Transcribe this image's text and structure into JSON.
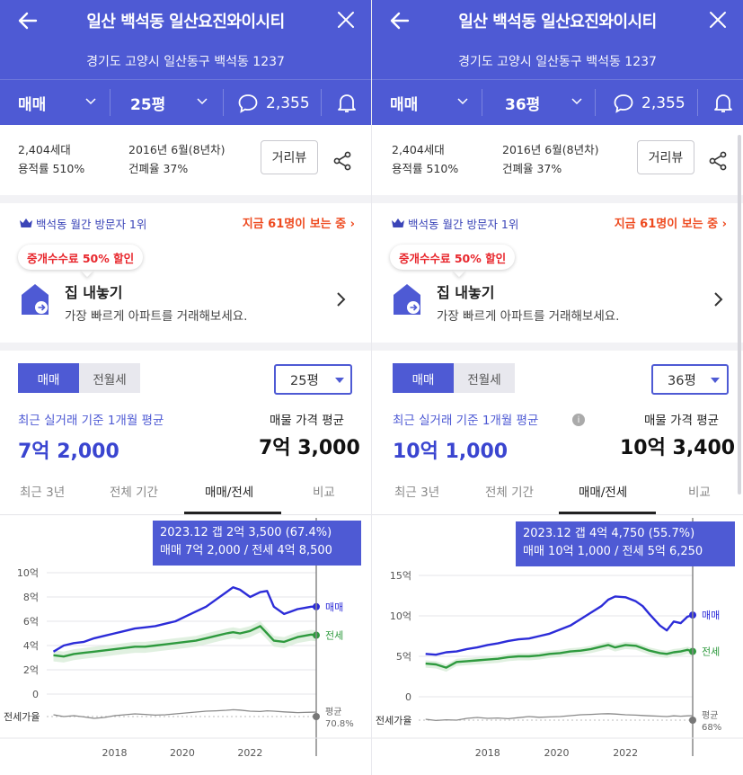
{
  "colors": {
    "header": "#4e5ad4",
    "sale": "#2c2cd8",
    "jeonse": "#2e9a3e",
    "ratio": "#8a8a8a",
    "accent_red": "#ee4a1f"
  },
  "panels": [
    {
      "header": {
        "title": "일산 백석동 일산요진와이시티",
        "address": "경기도 고양시 일산동구 백석동 1237",
        "trade_type": "매매",
        "size": "25평",
        "comments": "2,355"
      },
      "info": {
        "households": "2,404세대",
        "floor_area_ratio": "용적률 510%",
        "built": "2016년 6월(8년차)",
        "coverage_ratio": "건폐율 37%",
        "street_view": "거리뷰"
      },
      "visitors": {
        "text": "백석동 월간 방문자 1위",
        "now": "지금 61명이 보는 중"
      },
      "sell": {
        "badge": "중개수수료 50% 할인",
        "title": "집 내놓기",
        "subtitle": "가장 빠르게 아파트를 거래해보세요."
      },
      "price": {
        "seg_sale": "매매",
        "seg_rent": "전월세",
        "size": "25평",
        "avg_label": "최근 실거래 기준 1개월 평균",
        "avg_value": "7억 2,000",
        "listing_label": "매물 가격 평균",
        "listing_value": "7억 3,000"
      },
      "period_tabs": [
        "최근 3년",
        "전체 기간",
        "매매/전세",
        "비교"
      ],
      "tooltip": {
        "line1": "2023.12  갭 2억 3,500 (67.4%)",
        "line2": "매매 7억 2,000 / 전세 4억 8,500"
      },
      "chart_data": {
        "type": "line",
        "yticks": [
          "10억",
          "8억",
          "6억",
          "4억",
          "2억",
          "0"
        ],
        "ylim": [
          0,
          10
        ],
        "xticks": [
          "2018",
          "2020",
          "2022"
        ],
        "x": [
          2016.2,
          2016.5,
          2016.8,
          2017.1,
          2017.4,
          2017.7,
          2018.0,
          2018.3,
          2018.6,
          2018.9,
          2019.2,
          2019.5,
          2019.8,
          2020.1,
          2020.4,
          2020.7,
          2021.0,
          2021.3,
          2021.5,
          2021.7,
          2022.0,
          2022.3,
          2022.5,
          2022.7,
          2023.0,
          2023.2,
          2023.4,
          2023.6,
          2023.8,
          2023.95
        ],
        "series": [
          {
            "name": "매매",
            "values": [
              3.5,
              4.0,
              4.2,
              4.3,
              4.6,
              4.8,
              5.0,
              5.2,
              5.4,
              5.5,
              5.6,
              5.8,
              6.0,
              6.4,
              6.8,
              7.2,
              7.8,
              8.4,
              8.8,
              8.6,
              8.0,
              8.4,
              8.5,
              7.2,
              6.6,
              6.8,
              7.0,
              7.1,
              7.2,
              7.2
            ]
          },
          {
            "name": "전세",
            "values": [
              3.2,
              3.1,
              3.3,
              3.4,
              3.5,
              3.6,
              3.7,
              3.8,
              3.9,
              3.9,
              4.0,
              4.1,
              4.2,
              4.3,
              4.4,
              4.6,
              4.8,
              5.0,
              5.1,
              5.0,
              5.2,
              5.6,
              5.0,
              4.4,
              4.3,
              4.5,
              4.7,
              4.8,
              4.9,
              4.85
            ]
          }
        ],
        "ratio_label": "전세가율",
        "ratio_avg_label": "평균",
        "ratio_avg_value": "70.8%",
        "ratio_values": [
          0.5,
          0.6,
          0.55,
          0.62,
          0.7,
          0.65,
          0.55,
          0.5,
          0.45,
          0.48,
          0.52,
          0.5,
          0.45,
          0.4,
          0.35,
          0.3,
          0.28,
          0.25,
          0.22,
          0.24,
          0.3,
          0.32,
          0.28,
          0.3,
          0.34,
          0.36,
          0.38,
          0.37,
          0.36,
          0.35
        ]
      }
    },
    {
      "header": {
        "title": "일산 백석동 일산요진와이시티",
        "address": "경기도 고양시 일산동구 백석동 1237",
        "trade_type": "매매",
        "size": "36평",
        "comments": "2,355"
      },
      "info": {
        "households": "2,404세대",
        "floor_area_ratio": "용적률 510%",
        "built": "2016년 6월(8년차)",
        "coverage_ratio": "건폐율 37%",
        "street_view": "거리뷰"
      },
      "visitors": {
        "text": "백석동 월간 방문자 1위",
        "now": "지금 61명이 보는 중"
      },
      "sell": {
        "badge": "중개수수료 50% 할인",
        "title": "집 내놓기",
        "subtitle": "가장 빠르게 아파트를 거래해보세요."
      },
      "price": {
        "seg_sale": "매매",
        "seg_rent": "전월세",
        "size": "36평",
        "avg_label": "최근 실거래 기준 1개월 평균",
        "avg_value": "10억 1,000",
        "listing_label": "매물 가격 평균",
        "listing_value": "10억 3,400"
      },
      "period_tabs": [
        "최근 3년",
        "전체 기간",
        "매매/전세",
        "비교"
      ],
      "tooltip": {
        "line1": "2023.12  갭 4억 4,750 (55.7%)",
        "line2": "매매 10억 1,000 / 전세 5억 6,250"
      },
      "chart_data": {
        "type": "line",
        "yticks": [
          "15억",
          "10억",
          "5억",
          "0"
        ],
        "ylim": [
          0,
          15
        ],
        "xticks": [
          "2018",
          "2020",
          "2022"
        ],
        "x": [
          2016.2,
          2016.5,
          2016.8,
          2017.1,
          2017.4,
          2017.7,
          2018.0,
          2018.3,
          2018.6,
          2018.9,
          2019.2,
          2019.5,
          2019.8,
          2020.1,
          2020.4,
          2020.7,
          2021.0,
          2021.3,
          2021.5,
          2021.7,
          2022.0,
          2022.3,
          2022.5,
          2022.7,
          2023.0,
          2023.2,
          2023.4,
          2023.6,
          2023.8,
          2023.95
        ],
        "series": [
          {
            "name": "매매",
            "values": [
              5.3,
              5.2,
              5.5,
              5.6,
              5.9,
              6.1,
              6.4,
              6.6,
              6.9,
              7.1,
              7.2,
              7.5,
              7.8,
              8.3,
              8.8,
              9.6,
              10.4,
              11.2,
              12.0,
              12.4,
              12.3,
              11.8,
              11.2,
              10.2,
              8.8,
              8.2,
              9.3,
              9.1,
              9.9,
              10.1
            ]
          },
          {
            "name": "전세",
            "values": [
              4.1,
              4.0,
              3.6,
              4.3,
              4.4,
              4.5,
              4.6,
              4.7,
              4.9,
              5.0,
              5.0,
              5.1,
              5.3,
              5.4,
              5.6,
              5.7,
              5.9,
              6.2,
              6.4,
              6.1,
              6.4,
              6.3,
              6.0,
              5.7,
              5.4,
              5.3,
              5.5,
              5.6,
              5.8,
              5.6
            ]
          }
        ],
        "ratio_label": "전세가율",
        "ratio_avg_label": "평균",
        "ratio_avg_value": "68%",
        "ratio_values": [
          0.55,
          0.62,
          0.58,
          0.6,
          0.5,
          0.45,
          0.5,
          0.48,
          0.52,
          0.46,
          0.4,
          0.44,
          0.42,
          0.4,
          0.35,
          0.3,
          0.28,
          0.25,
          0.24,
          0.26,
          0.3,
          0.32,
          0.34,
          0.36,
          0.38,
          0.4,
          0.36,
          0.38,
          0.36,
          0.35
        ]
      }
    }
  ]
}
